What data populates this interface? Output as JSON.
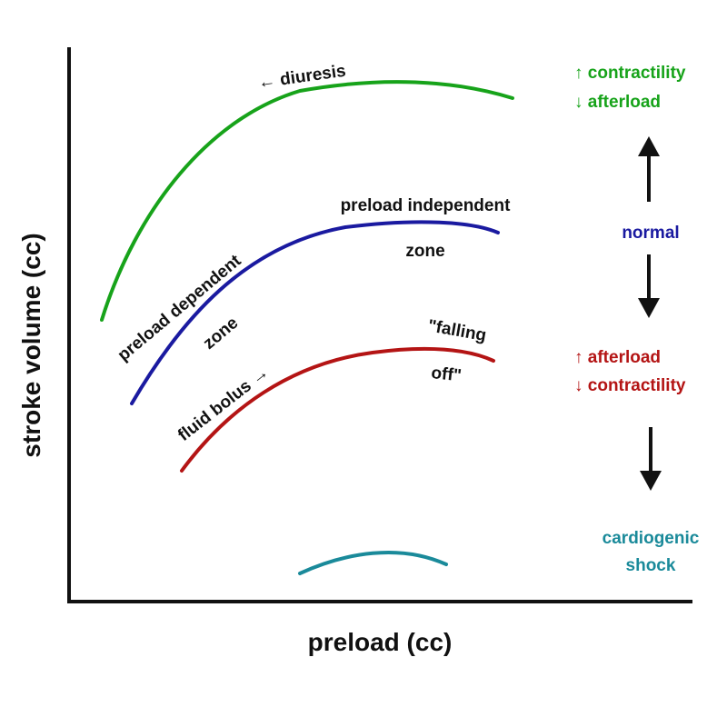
{
  "axes": {
    "x_label": "preload (cc)",
    "y_label": "stroke volume (cc)"
  },
  "curves": {
    "green": {
      "color": "#17a31a",
      "label": "← diuresis"
    },
    "blue": {
      "color": "#1a1aa0",
      "label_top_line1": "preload independent",
      "label_top_line2": "zone",
      "label_side_line1": "preload dependent",
      "label_side_line2": "zone"
    },
    "red": {
      "color": "#b41414",
      "label_left": "fluid bolus →",
      "label_right_line1": "\"falling",
      "label_right_line2": "off\""
    },
    "teal": {
      "color": "#1a8a9a"
    }
  },
  "legend": {
    "up": {
      "line1": "↑ contractility",
      "line2": "↓ afterload",
      "color": "#17a31a"
    },
    "normal": {
      "text": "normal",
      "color": "#1a1aa0"
    },
    "down": {
      "line1": "↑ afterload",
      "line2": "↓ contractility",
      "color": "#b41414"
    },
    "shock": {
      "line1": "cardiogenic",
      "line2": "shock",
      "color": "#1a8a9a"
    },
    "arrow_color": "#111111"
  }
}
